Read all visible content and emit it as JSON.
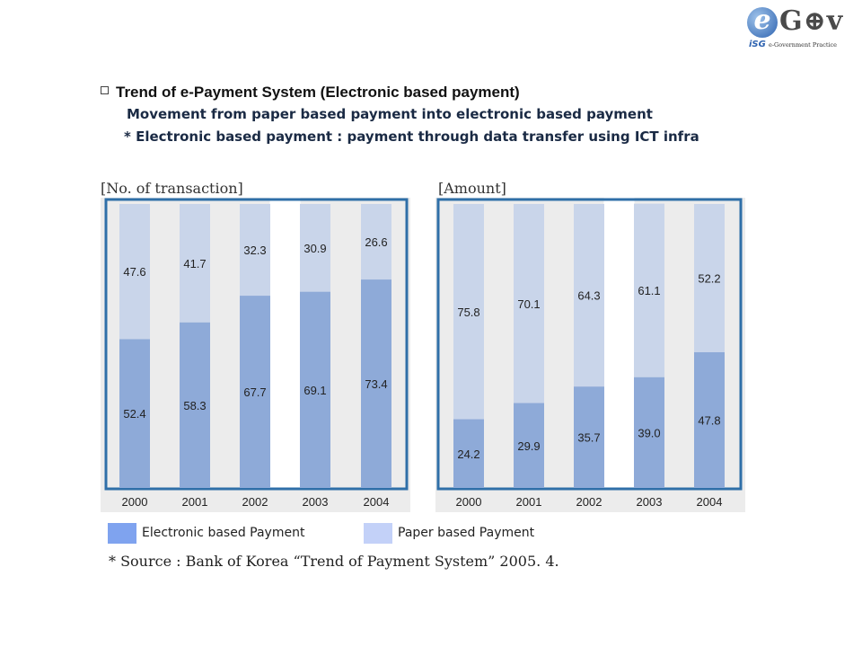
{
  "logo": {
    "e": "e",
    "gov": "G⊕v",
    "isg": "iSG",
    "subtitle": "e-Government Practice"
  },
  "header": {
    "title": "Trend of e-Payment System (Electronic based payment)",
    "line1": "Movement from paper based payment into electronic based payment",
    "line2": "* Electronic based payment  :  payment through data transfer using ICT infra"
  },
  "legend": {
    "electronic": "Electronic based Payment",
    "paper": "Paper based Payment"
  },
  "source": "* Source : Bank of Korea “Trend of Payment System” 2005. 4.",
  "colors": {
    "electronic": "#8eaad8",
    "paper": "#c9d5ea",
    "electronic_legend": "#7fa3ef",
    "paper_legend": "#c3d1f8",
    "frame": "#2f6fa8",
    "chart_bg": "#ececec"
  },
  "chart_data": [
    {
      "type": "bar",
      "stacked": true,
      "title": "[No. of transaction]",
      "categories": [
        "2000",
        "2001",
        "2002",
        "2003",
        "2004"
      ],
      "series": [
        {
          "name": "Electronic based Payment",
          "values": [
            52.4,
            58.3,
            67.7,
            69.1,
            73.4
          ]
        },
        {
          "name": "Paper based Payment",
          "values": [
            47.6,
            41.7,
            32.3,
            30.9,
            26.6
          ]
        }
      ],
      "ylim": [
        0,
        100
      ],
      "grid": false,
      "legend": "bottom"
    },
    {
      "type": "bar",
      "stacked": true,
      "title": "[Amount]",
      "categories": [
        "2000",
        "2001",
        "2002",
        "2003",
        "2004"
      ],
      "series": [
        {
          "name": "Electronic based Payment",
          "values": [
            24.2,
            29.9,
            35.7,
            39.0,
            47.8
          ]
        },
        {
          "name": "Paper based Payment",
          "values": [
            75.8,
            70.1,
            64.3,
            61.1,
            52.2
          ]
        }
      ],
      "ylim": [
        0,
        100
      ],
      "grid": false,
      "legend": "bottom"
    }
  ]
}
